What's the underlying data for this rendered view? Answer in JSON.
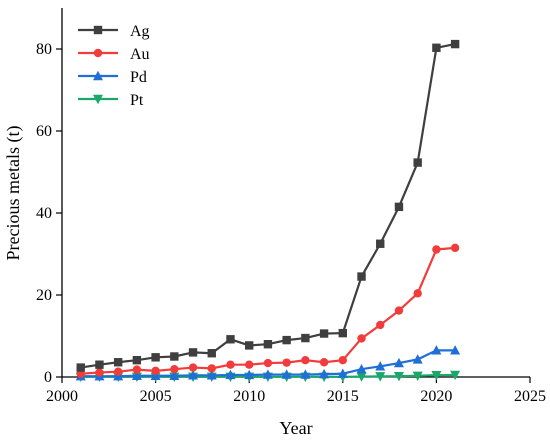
{
  "chart_data": {
    "type": "line",
    "xlabel": "Year",
    "ylabel": "Precious metals (t)",
    "xlim": [
      2000,
      2025
    ],
    "ylim": [
      0,
      90
    ],
    "xticks": [
      2000,
      2005,
      2010,
      2015,
      2020,
      2025
    ],
    "yticks": [
      0,
      20,
      40,
      60,
      80
    ],
    "legend_position": "top-left",
    "grid": false,
    "x": [
      2001,
      2002,
      2003,
      2004,
      2005,
      2006,
      2007,
      2008,
      2009,
      2010,
      2011,
      2012,
      2013,
      2014,
      2015,
      2016,
      2017,
      2018,
      2019,
      2020,
      2021
    ],
    "series": [
      {
        "name": "Ag",
        "color": "#3f3f3f",
        "marker": "square",
        "values": [
          2.3,
          3.0,
          3.6,
          4.1,
          4.8,
          5.0,
          6.0,
          5.8,
          9.2,
          7.7,
          8.0,
          9.0,
          9.5,
          10.6,
          10.7,
          24.5,
          32.5,
          41.5,
          52.3,
          80.3,
          81.2
        ]
      },
      {
        "name": "Au",
        "color": "#f23c3c",
        "marker": "circle",
        "values": [
          0.8,
          1.1,
          1.3,
          1.8,
          1.5,
          1.9,
          2.3,
          2.1,
          3.0,
          3.0,
          3.4,
          3.5,
          4.1,
          3.6,
          4.1,
          9.4,
          12.7,
          16.2,
          20.4,
          31.1,
          31.5
        ]
      },
      {
        "name": "Pd",
        "color": "#1f6fd6",
        "marker": "triangle-up",
        "values": [
          0.2,
          0.2,
          0.2,
          0.3,
          0.3,
          0.3,
          0.4,
          0.4,
          0.5,
          0.5,
          0.6,
          0.6,
          0.6,
          0.7,
          0.8,
          1.9,
          2.6,
          3.4,
          4.3,
          6.5,
          6.5
        ]
      },
      {
        "name": "Pt",
        "color": "#1aa86a",
        "marker": "triangle-down",
        "values": [
          0.05,
          0.05,
          0.05,
          0.05,
          0.05,
          0.05,
          0.05,
          0.05,
          0.05,
          0.05,
          0.05,
          0.05,
          0.05,
          0.05,
          0.05,
          0.1,
          0.15,
          0.2,
          0.3,
          0.45,
          0.5
        ]
      }
    ]
  }
}
